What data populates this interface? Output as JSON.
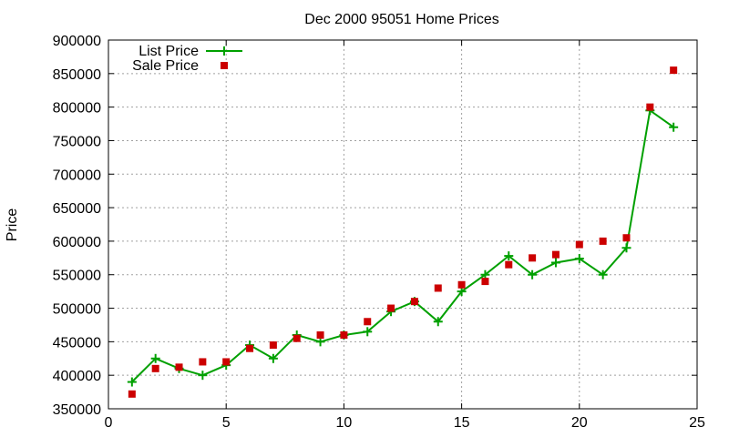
{
  "chart_data": {
    "type": "line",
    "title": "Dec 2000 95051 Home Prices",
    "xlabel": "",
    "ylabel": "Price",
    "xlim": [
      0,
      25
    ],
    "ylim": [
      350000,
      900000
    ],
    "x_ticks": [
      "0",
      "5",
      "10",
      "15",
      "20",
      "25"
    ],
    "y_ticks": [
      "350000",
      "400000",
      "450000",
      "500000",
      "550000",
      "600000",
      "650000",
      "700000",
      "750000",
      "800000",
      "850000",
      "900000"
    ],
    "grid": true,
    "legend_position": "top-left",
    "series": [
      {
        "name": "List Price",
        "style": "line-with-plus-markers",
        "color": "#00a000",
        "x": [
          1,
          2,
          3,
          4,
          5,
          6,
          7,
          8,
          9,
          10,
          11,
          12,
          13,
          14,
          15,
          16,
          17,
          18,
          19,
          20,
          21,
          22,
          23,
          24
        ],
        "values": [
          390000,
          425000,
          410000,
          400000,
          415000,
          445000,
          425000,
          460000,
          450000,
          460000,
          465000,
          495000,
          510000,
          480000,
          525000,
          550000,
          578000,
          550000,
          568000,
          574000,
          550000,
          590000,
          795000,
          770000
        ]
      },
      {
        "name": "Sale Price",
        "style": "square-markers",
        "color": "#cc0000",
        "x": [
          1,
          2,
          3,
          4,
          5,
          6,
          7,
          8,
          9,
          10,
          11,
          12,
          13,
          14,
          15,
          16,
          17,
          18,
          19,
          20,
          21,
          22,
          23,
          24
        ],
        "values": [
          372000,
          410000,
          412000,
          420000,
          420000,
          440000,
          445000,
          455000,
          460000,
          460000,
          480000,
          500000,
          510000,
          530000,
          535000,
          540000,
          565000,
          575000,
          580000,
          595000,
          600000,
          605000,
          800000,
          855000
        ]
      }
    ]
  }
}
